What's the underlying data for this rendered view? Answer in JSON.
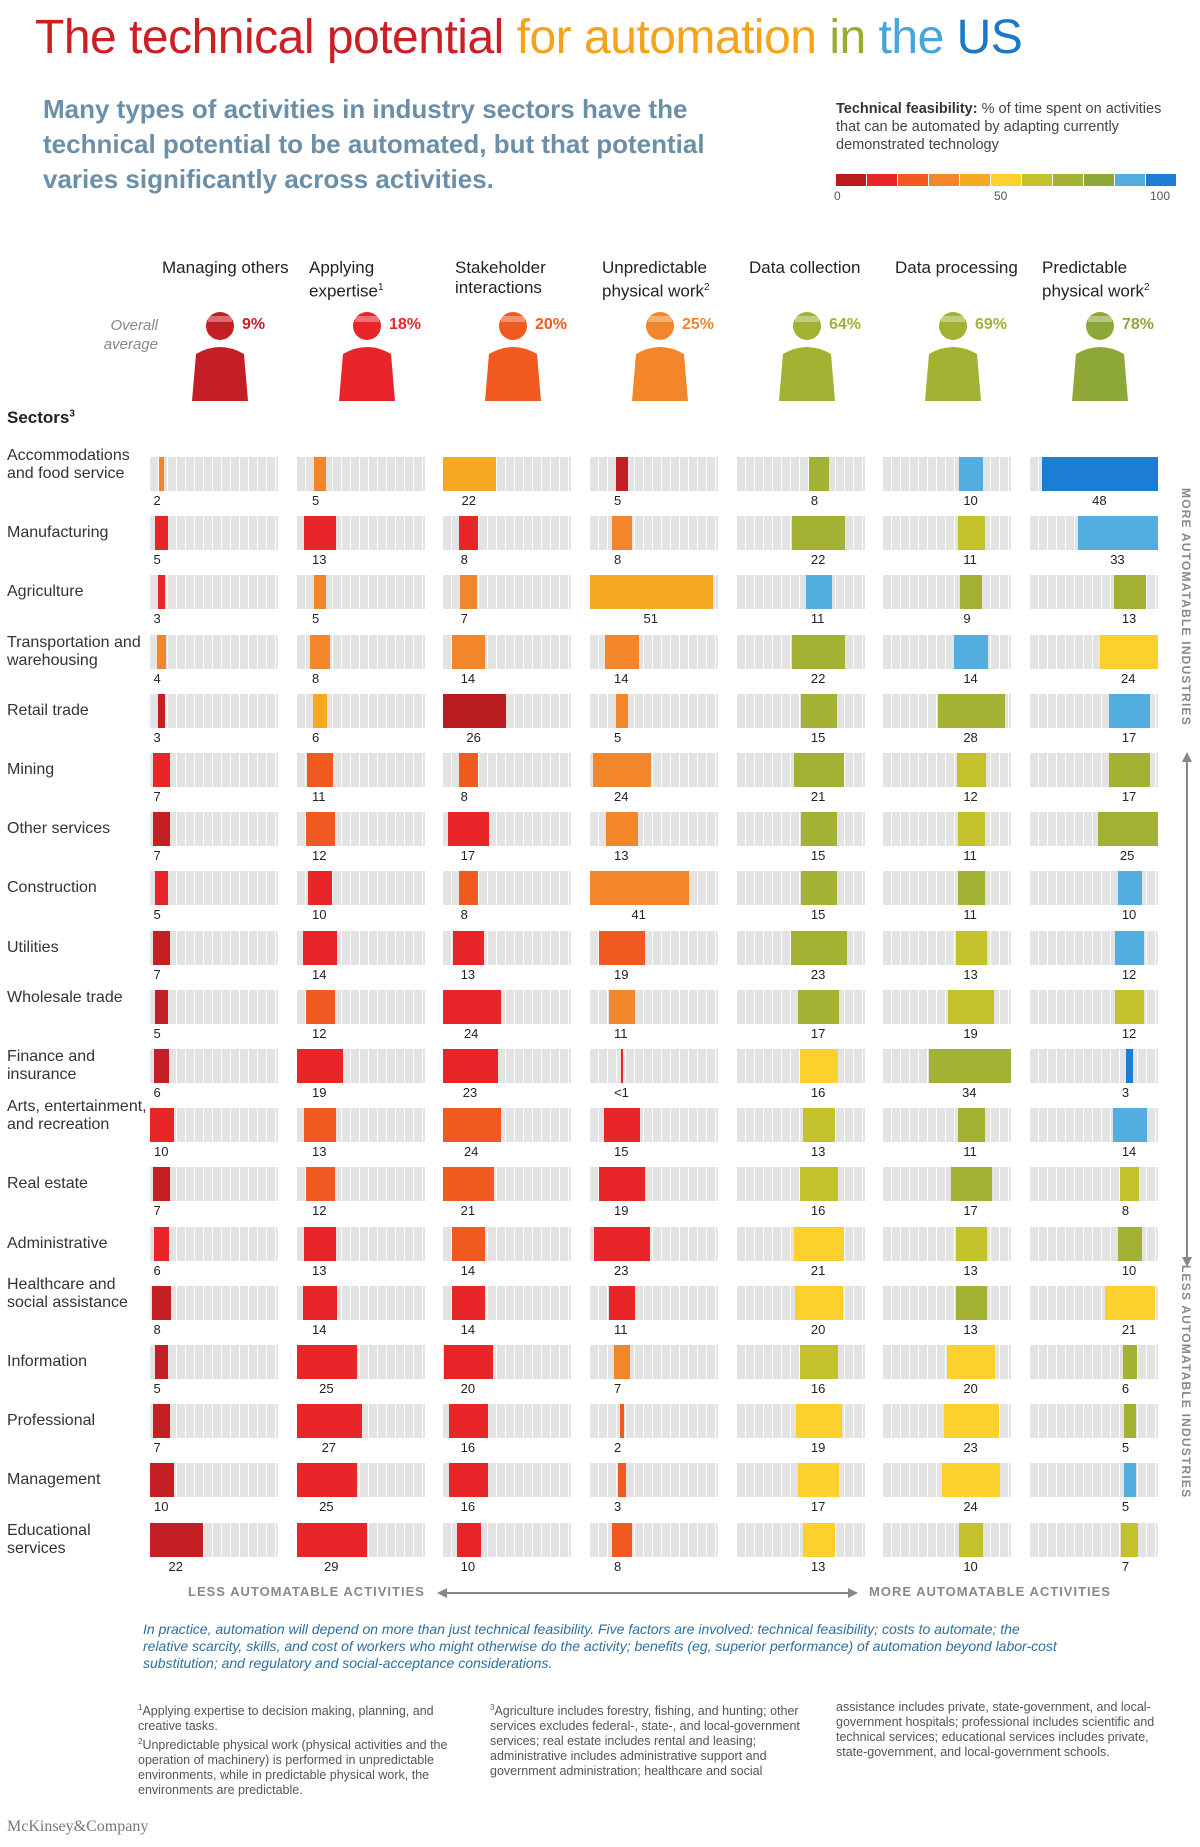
{
  "title_parts": [
    {
      "text": "The technical potential ",
      "color": "#cc1f24"
    },
    {
      "text": "for automation ",
      "color": "#f5a31a"
    },
    {
      "text": "in ",
      "color": "#9aac2c"
    },
    {
      "text": "the ",
      "color": "#45a6dd"
    },
    {
      "text": "US",
      "color": "#1a78c8"
    }
  ],
  "subtitle": "Many types of activities in industry sectors have the technical potential to be automated, but that potential varies significantly across activities.",
  "legend": {
    "title": "Technical feasibility:",
    "text": "% of time spent on activities that can be automated by adapting currently demonstrated technology",
    "colors": [
      "#b81c1c",
      "#e8262a",
      "#f0591f",
      "#f3862a",
      "#f7a823",
      "#fcd02d",
      "#c4c22c",
      "#a3b232",
      "#8ea838",
      "#53aee0",
      "#1b7ed4"
    ],
    "ticks": [
      "0",
      "50",
      "100"
    ]
  },
  "overall_label": "Overall average",
  "sectors_label": "Sectors",
  "side_labels": {
    "top": "MORE AUTOMATABLE INDUSTRIES",
    "bottom": "LESS AUTOMATABLE INDUSTRIES"
  },
  "axis_labels": {
    "left": "LESS AUTOMATABLE ACTIVITIES",
    "right": "MORE AUTOMATABLE ACTIVITIES"
  },
  "note": "In practice, automation will depend on more than just technical feasibility. Five factors are involved: technical feasibility; costs to automate; the relative scarcity, skills, and cost of workers who might otherwise do the activity; benefits (eg, superior performance) of automation beyond labor-cost substitution; and regulatory and social-acceptance considerations.",
  "footnotes": {
    "f1": "Applying expertise to decision making, planning, and creative tasks.",
    "f2": "Unpredictable physical work (physical activities and the operation of machinery) is performed in unpredictable environments, while in predictable physical work, the environments are predictable.",
    "f3a": "Agriculture includes forestry, fishing, and hunting; other services excludes federal-, state-, and local-government services; real estate includes rental and leasing; administrative includes administrative support and government administration; healthcare and social",
    "f3b": "assistance includes private, state-government, and local-government hospitals; professional includes scientific and technical services; educational services includes private, state-government, and local-government schools."
  },
  "brand": "McKinsey&Company",
  "chart_data": {
    "type": "bar",
    "title": "The technical potential for automation in the US",
    "activities": [
      {
        "name": "Managing others",
        "footnote": "",
        "overall": 9,
        "overall_label": "9%",
        "color": "#c41f24"
      },
      {
        "name": "Applying expertise",
        "footnote": "1",
        "overall": 18,
        "overall_label": "18%",
        "color": "#e8262a"
      },
      {
        "name": "Stakeholder interactions",
        "footnote": "",
        "overall": 20,
        "overall_label": "20%",
        "color": "#f0591f"
      },
      {
        "name": "Unpredictable physical work",
        "footnote": "2",
        "overall": 25,
        "overall_label": "25%",
        "color": "#f3862a"
      },
      {
        "name": "Data collection",
        "footnote": "",
        "overall": 64,
        "overall_label": "64%",
        "color": "#a3b232"
      },
      {
        "name": "Data processing",
        "footnote": "",
        "overall": 69,
        "overall_label": "69%",
        "color": "#a3b232"
      },
      {
        "name": "Predictable physical work",
        "footnote": "2",
        "overall": 78,
        "overall_label": "78%",
        "color": "#8ea838"
      }
    ],
    "sectors": [
      {
        "name": "Accommodations and food service",
        "values": [
          2,
          5,
          22,
          5,
          8,
          10,
          48
        ],
        "labels": [
          "2",
          "5",
          "22",
          "5",
          "8",
          "10",
          "48"
        ]
      },
      {
        "name": "Manufacturing",
        "values": [
          5,
          13,
          8,
          8,
          22,
          11,
          33
        ],
        "labels": [
          "5",
          "13",
          "8",
          "8",
          "22",
          "11",
          "33"
        ]
      },
      {
        "name": "Agriculture",
        "values": [
          3,
          5,
          7,
          51,
          11,
          9,
          13
        ],
        "labels": [
          "3",
          "5",
          "7",
          "51",
          "11",
          "9",
          "13"
        ]
      },
      {
        "name": "Transportation and warehousing",
        "values": [
          4,
          8,
          14,
          14,
          22,
          14,
          24
        ],
        "labels": [
          "4",
          "8",
          "14",
          "14",
          "22",
          "14",
          "24"
        ]
      },
      {
        "name": "Retail trade",
        "values": [
          3,
          6,
          26,
          5,
          15,
          28,
          17
        ],
        "labels": [
          "3",
          "6",
          "26",
          "5",
          "15",
          "28",
          "17"
        ]
      },
      {
        "name": "Mining",
        "values": [
          7,
          11,
          8,
          24,
          21,
          12,
          17
        ],
        "labels": [
          "7",
          "11",
          "8",
          "24",
          "21",
          "12",
          "17"
        ]
      },
      {
        "name": "Other services",
        "values": [
          7,
          12,
          17,
          13,
          15,
          11,
          25
        ],
        "labels": [
          "7",
          "12",
          "17",
          "13",
          "15",
          "11",
          "25"
        ]
      },
      {
        "name": "Construction",
        "values": [
          5,
          10,
          8,
          41,
          15,
          11,
          10
        ],
        "labels": [
          "5",
          "10",
          "8",
          "41",
          "15",
          "11",
          "10"
        ]
      },
      {
        "name": "Utilities",
        "values": [
          7,
          14,
          13,
          19,
          23,
          13,
          12
        ],
        "labels": [
          "7",
          "14",
          "13",
          "19",
          "23",
          "13",
          "12"
        ]
      },
      {
        "name": "Wholesale trade",
        "values": [
          5,
          12,
          24,
          11,
          17,
          19,
          12
        ],
        "labels": [
          "5",
          "12",
          "24",
          "11",
          "17",
          "19",
          "12"
        ]
      },
      {
        "name": "Finance and insurance",
        "values": [
          6,
          19,
          23,
          0.5,
          16,
          34,
          3
        ],
        "labels": [
          "6",
          "19",
          "23",
          "<1",
          "16",
          "34",
          "3"
        ]
      },
      {
        "name": "Arts, entertainment, and recreation",
        "values": [
          10,
          13,
          24,
          15,
          13,
          11,
          14
        ],
        "labels": [
          "10",
          "13",
          "24",
          "15",
          "13",
          "11",
          "14"
        ]
      },
      {
        "name": "Real estate",
        "values": [
          7,
          12,
          21,
          19,
          16,
          17,
          8
        ],
        "labels": [
          "7",
          "12",
          "21",
          "19",
          "16",
          "17",
          "8"
        ]
      },
      {
        "name": "Administrative",
        "values": [
          6,
          13,
          14,
          23,
          21,
          13,
          10
        ],
        "labels": [
          "6",
          "13",
          "14",
          "23",
          "21",
          "13",
          "10"
        ]
      },
      {
        "name": "Healthcare and social assistance",
        "values": [
          8,
          14,
          14,
          11,
          20,
          13,
          21
        ],
        "labels": [
          "8",
          "14",
          "14",
          "11",
          "20",
          "13",
          "21"
        ]
      },
      {
        "name": "Information",
        "values": [
          5,
          25,
          20,
          7,
          16,
          20,
          6
        ],
        "labels": [
          "5",
          "25",
          "20",
          "7",
          "16",
          "20",
          "6"
        ]
      },
      {
        "name": "Professional",
        "values": [
          7,
          27,
          16,
          2,
          19,
          23,
          5
        ],
        "labels": [
          "7",
          "27",
          "16",
          "2",
          "19",
          "23",
          "5"
        ]
      },
      {
        "name": "Management",
        "values": [
          10,
          25,
          16,
          3,
          17,
          24,
          5
        ],
        "labels": [
          "10",
          "25",
          "16",
          "3",
          "17",
          "24",
          "5"
        ]
      },
      {
        "name": "Educational services",
        "values": [
          22,
          29,
          10,
          8,
          13,
          10,
          7
        ],
        "labels": [
          "22",
          "29",
          "10",
          "8",
          "13",
          "10",
          "7"
        ]
      }
    ],
    "cell_colors": [
      [
        "#f3862a",
        "#f3862a",
        "#f7a823",
        "#c41f24",
        "#a3b232",
        "#53aee0",
        "#1b7ed4"
      ],
      [
        "#e8262a",
        "#e8262a",
        "#e8262a",
        "#f3862a",
        "#a3b232",
        "#c4c22c",
        "#53aee0"
      ],
      [
        "#e8262a",
        "#f3862a",
        "#f3862a",
        "#f7a823",
        "#53aee0",
        "#a3b232",
        "#a3b232"
      ],
      [
        "#f3862a",
        "#f3862a",
        "#f3862a",
        "#f3862a",
        "#a3b232",
        "#53aee0",
        "#fcd02d"
      ],
      [
        "#c41f24",
        "#f7a823",
        "#b81c1c",
        "#f3862a",
        "#a3b232",
        "#a3b232",
        "#53aee0"
      ],
      [
        "#e8262a",
        "#f0591f",
        "#f0591f",
        "#f3862a",
        "#a3b232",
        "#c4c22c",
        "#a3b232"
      ],
      [
        "#c41f24",
        "#f0591f",
        "#e8262a",
        "#f3862a",
        "#a3b232",
        "#c4c22c",
        "#a3b232"
      ],
      [
        "#e8262a",
        "#e8262a",
        "#f0591f",
        "#f3862a",
        "#a3b232",
        "#a3b232",
        "#53aee0"
      ],
      [
        "#c41f24",
        "#e8262a",
        "#e8262a",
        "#f0591f",
        "#a3b232",
        "#c4c22c",
        "#53aee0"
      ],
      [
        "#c41f24",
        "#f0591f",
        "#e8262a",
        "#f3862a",
        "#a3b232",
        "#c4c22c",
        "#c4c22c"
      ],
      [
        "#c41f24",
        "#e8262a",
        "#e8262a",
        "#e8262a",
        "#fcd02d",
        "#a3b232",
        "#1b7ed4"
      ],
      [
        "#e8262a",
        "#f0591f",
        "#f0591f",
        "#e8262a",
        "#c4c22c",
        "#a3b232",
        "#53aee0"
      ],
      [
        "#c41f24",
        "#f0591f",
        "#f0591f",
        "#e8262a",
        "#c4c22c",
        "#a3b232",
        "#c4c22c"
      ],
      [
        "#e8262a",
        "#e8262a",
        "#f0591f",
        "#e8262a",
        "#fcd02d",
        "#c4c22c",
        "#a3b232"
      ],
      [
        "#c41f24",
        "#e8262a",
        "#e8262a",
        "#e8262a",
        "#fcd02d",
        "#a3b232",
        "#fcd02d"
      ],
      [
        "#c41f24",
        "#e8262a",
        "#e8262a",
        "#f3862a",
        "#c4c22c",
        "#fcd02d",
        "#a3b232"
      ],
      [
        "#c41f24",
        "#e8262a",
        "#e8262a",
        "#f0591f",
        "#fcd02d",
        "#fcd02d",
        "#a3b232"
      ],
      [
        "#c41f24",
        "#e8262a",
        "#e8262a",
        "#f0591f",
        "#fcd02d",
        "#fcd02d",
        "#53aee0"
      ],
      [
        "#c41f24",
        "#e8262a",
        "#e8262a",
        "#f0591f",
        "#fcd02d",
        "#c4c22c",
        "#c4c22c"
      ]
    ]
  }
}
